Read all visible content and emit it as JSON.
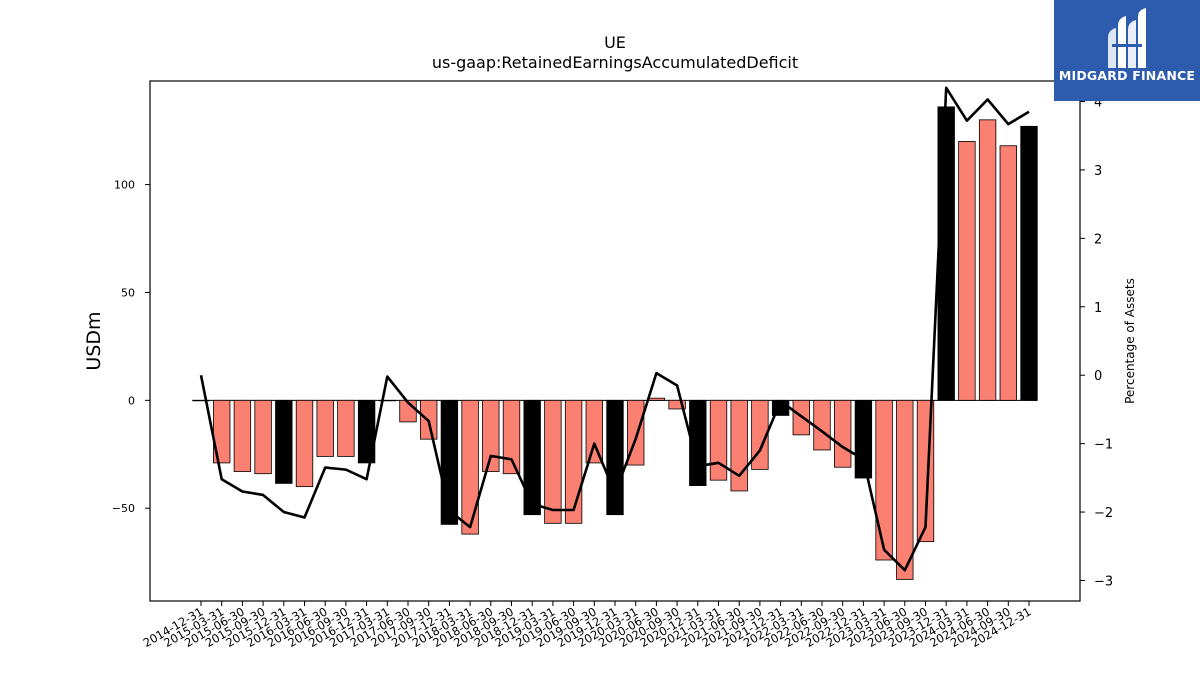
{
  "chart_data": {
    "type": "bar",
    "title": "UE",
    "subtitle": "us-gaap:RetainedEarningsAccumulatedDeficit",
    "ylabel": "USDm",
    "y2label": "Percentage of Assets",
    "ylim": [
      -93,
      148
    ],
    "y2lim": [
      -3.3,
      4.3
    ],
    "yticks": [
      -50,
      0,
      50,
      100
    ],
    "y2ticks": [
      -3,
      -2,
      -1,
      0,
      1,
      2,
      3,
      4
    ],
    "categories": [
      "2014-12-31",
      "2015-03-31",
      "2015-06-30",
      "2015-09-30",
      "2015-12-31",
      "2016-03-31",
      "2016-06-30",
      "2016-09-30",
      "2016-12-31",
      "2017-03-31",
      "2017-06-30",
      "2017-09-30",
      "2017-12-31",
      "2018-03-31",
      "2018-06-30",
      "2018-09-30",
      "2018-12-31",
      "2019-03-31",
      "2019-06-30",
      "2019-09-30",
      "2019-12-31",
      "2020-03-31",
      "2020-06-30",
      "2020-09-30",
      "2020-12-31",
      "2021-03-31",
      "2021-06-30",
      "2021-09-30",
      "2021-12-31",
      "2022-03-31",
      "2022-06-30",
      "2022-09-30",
      "2022-12-31",
      "2023-03-31",
      "2023-06-30",
      "2023-09-30",
      "2023-12-31",
      "2024-03-31",
      "2024-06-30",
      "2024-09-30",
      "2024-12-31"
    ],
    "series": [
      {
        "type": "bar",
        "values": [
          0,
          -29,
          -33,
          -34,
          -38.5,
          -40,
          -26,
          -26,
          -29,
          0,
          -10,
          -18,
          -57.5,
          -62,
          -33,
          -34,
          -53,
          -57,
          -57,
          -29,
          -53,
          -30,
          1,
          -4,
          -39.5,
          -37,
          -42,
          -32,
          -7,
          -16,
          -23,
          -31,
          -36,
          -74,
          -83,
          -65.5,
          136,
          120,
          130,
          118,
          127
        ],
        "annual_color": "#000000",
        "quarterly_color": "#fa8072",
        "annual": [
          false,
          false,
          false,
          false,
          true,
          false,
          false,
          false,
          true,
          false,
          false,
          false,
          true,
          false,
          false,
          false,
          true,
          false,
          false,
          false,
          true,
          false,
          false,
          false,
          true,
          false,
          false,
          false,
          true,
          false,
          false,
          false,
          true,
          false,
          false,
          false,
          true,
          false,
          false,
          false,
          true
        ]
      },
      {
        "type": "line",
        "axis": "right",
        "color": "#000000",
        "values": [
          0.0,
          -1.52,
          -1.7,
          -1.75,
          -2.0,
          -2.08,
          -1.35,
          -1.38,
          -1.52,
          -0.02,
          -0.4,
          -0.67,
          -1.98,
          -2.22,
          -1.18,
          -1.23,
          -1.88,
          -1.97,
          -1.97,
          -1.0,
          -1.72,
          -0.93,
          0.03,
          -0.15,
          -1.33,
          -1.28,
          -1.47,
          -1.1,
          -0.38,
          -0.6,
          -0.82,
          -1.05,
          -1.23,
          -2.55,
          -2.85,
          -2.22,
          4.2,
          3.72,
          4.03,
          3.67,
          3.85
        ]
      }
    ]
  },
  "logo": {
    "text": "MIDGARD FINANCE"
  }
}
